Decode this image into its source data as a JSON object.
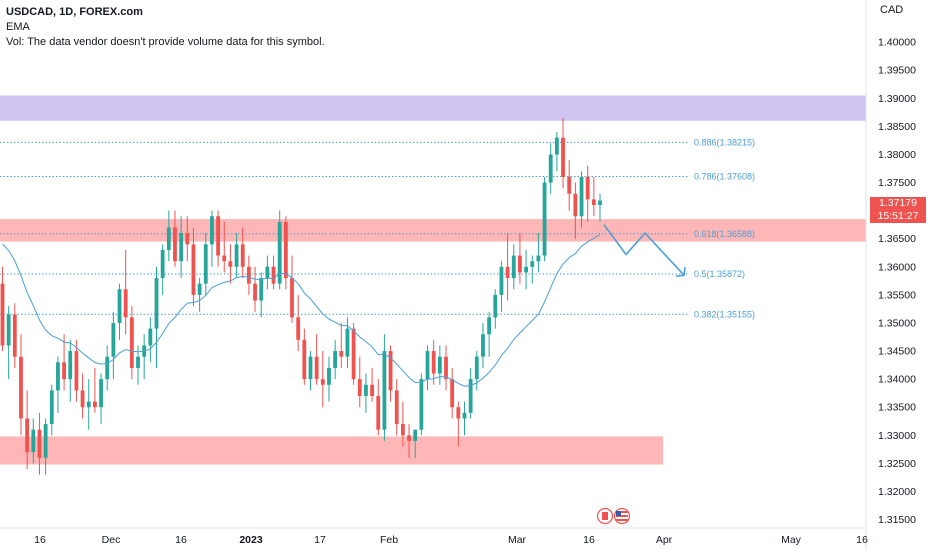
{
  "header": {
    "symbol_line": "USDCAD, 1D, FOREX.com",
    "indicator": "EMA",
    "volume_note": "Vol: The data vendor doesn't provide volume data for this symbol."
  },
  "currency": "CAD",
  "last_price": {
    "value": "1.37179",
    "countdown": "15:51:27"
  },
  "colors": {
    "up": "#26a69a",
    "down": "#ef5350",
    "candle_body_up": "#26a69a",
    "candle_body_down": "#ef5350",
    "wick": "#555555",
    "ema": "#4a9fd6",
    "fib": "#4a9fd6",
    "resistance_zone": "#d1c4f2",
    "support_zone": "#ffb6b6",
    "axis_text": "#131722"
  },
  "chart_data": {
    "type": "candlestick",
    "y_axis": {
      "min": 1.3135,
      "max": 1.4075,
      "ticks": [
        "1.40000",
        "1.39500",
        "1.39000",
        "1.38500",
        "1.38000",
        "1.37500",
        "1.37000",
        "1.36500",
        "1.36000",
        "1.35500",
        "1.35000",
        "1.34500",
        "1.34000",
        "1.33500",
        "1.33000",
        "1.32500",
        "1.32000",
        "1.31500"
      ]
    },
    "x_axis": {
      "labels": [
        "16",
        "Dec",
        "16",
        "2023",
        "17",
        "Feb",
        "Mar",
        "16",
        "Apr",
        "May",
        "16"
      ]
    },
    "zones": [
      {
        "name": "resistance",
        "low": 1.386,
        "high": 1.3905
      },
      {
        "name": "middle",
        "low": 1.3645,
        "high": 1.3685
      },
      {
        "name": "support",
        "low": 1.3248,
        "high": 1.3298
      }
    ],
    "fib_levels": [
      {
        "label": "0.886(1.38215)",
        "value": 1.38215
      },
      {
        "label": "0.786(1.37608)",
        "value": 1.37608
      },
      {
        "label": "0.618(1.36588)",
        "value": 1.36588
      },
      {
        "label": "0.5(1.35872)",
        "value": 1.35872
      },
      {
        "label": "0.382(1.35155)",
        "value": 1.35155
      }
    ],
    "projection_path": [
      1.3675,
      1.3622,
      1.366,
      1.3585
    ],
    "candles": [
      {
        "o": 1.357,
        "h": 1.36,
        "l": 1.345,
        "c": 1.346
      },
      {
        "o": 1.346,
        "h": 1.353,
        "l": 1.34,
        "c": 1.3515
      },
      {
        "o": 1.3515,
        "h": 1.3535,
        "l": 1.342,
        "c": 1.344
      },
      {
        "o": 1.344,
        "h": 1.348,
        "l": 1.33,
        "c": 1.333
      },
      {
        "o": 1.333,
        "h": 1.338,
        "l": 1.324,
        "c": 1.327
      },
      {
        "o": 1.327,
        "h": 1.333,
        "l": 1.325,
        "c": 1.331
      },
      {
        "o": 1.331,
        "h": 1.334,
        "l": 1.323,
        "c": 1.326
      },
      {
        "o": 1.326,
        "h": 1.333,
        "l": 1.323,
        "c": 1.332
      },
      {
        "o": 1.332,
        "h": 1.339,
        "l": 1.33,
        "c": 1.338
      },
      {
        "o": 1.338,
        "h": 1.344,
        "l": 1.334,
        "c": 1.343
      },
      {
        "o": 1.343,
        "h": 1.348,
        "l": 1.338,
        "c": 1.34
      },
      {
        "o": 1.34,
        "h": 1.347,
        "l": 1.336,
        "c": 1.345
      },
      {
        "o": 1.345,
        "h": 1.347,
        "l": 1.336,
        "c": 1.338
      },
      {
        "o": 1.338,
        "h": 1.341,
        "l": 1.333,
        "c": 1.335
      },
      {
        "o": 1.335,
        "h": 1.34,
        "l": 1.331,
        "c": 1.336
      },
      {
        "o": 1.336,
        "h": 1.342,
        "l": 1.334,
        "c": 1.335
      },
      {
        "o": 1.335,
        "h": 1.341,
        "l": 1.332,
        "c": 1.34
      },
      {
        "o": 1.34,
        "h": 1.346,
        "l": 1.338,
        "c": 1.344
      },
      {
        "o": 1.344,
        "h": 1.352,
        "l": 1.34,
        "c": 1.35
      },
      {
        "o": 1.35,
        "h": 1.357,
        "l": 1.347,
        "c": 1.356
      },
      {
        "o": 1.356,
        "h": 1.363,
        "l": 1.348,
        "c": 1.351
      },
      {
        "o": 1.351,
        "h": 1.353,
        "l": 1.34,
        "c": 1.342
      },
      {
        "o": 1.342,
        "h": 1.346,
        "l": 1.339,
        "c": 1.344
      },
      {
        "o": 1.344,
        "h": 1.348,
        "l": 1.34,
        "c": 1.346
      },
      {
        "o": 1.346,
        "h": 1.351,
        "l": 1.343,
        "c": 1.349
      },
      {
        "o": 1.349,
        "h": 1.36,
        "l": 1.342,
        "c": 1.358
      },
      {
        "o": 1.358,
        "h": 1.364,
        "l": 1.355,
        "c": 1.363
      },
      {
        "o": 1.363,
        "h": 1.37,
        "l": 1.361,
        "c": 1.367
      },
      {
        "o": 1.367,
        "h": 1.37,
        "l": 1.36,
        "c": 1.361
      },
      {
        "o": 1.361,
        "h": 1.369,
        "l": 1.358,
        "c": 1.366
      },
      {
        "o": 1.366,
        "h": 1.369,
        "l": 1.361,
        "c": 1.364
      },
      {
        "o": 1.364,
        "h": 1.367,
        "l": 1.353,
        "c": 1.355
      },
      {
        "o": 1.355,
        "h": 1.358,
        "l": 1.352,
        "c": 1.357
      },
      {
        "o": 1.357,
        "h": 1.366,
        "l": 1.355,
        "c": 1.364
      },
      {
        "o": 1.364,
        "h": 1.37,
        "l": 1.36,
        "c": 1.369
      },
      {
        "o": 1.369,
        "h": 1.37,
        "l": 1.36,
        "c": 1.362
      },
      {
        "o": 1.362,
        "h": 1.368,
        "l": 1.359,
        "c": 1.361
      },
      {
        "o": 1.361,
        "h": 1.364,
        "l": 1.357,
        "c": 1.36
      },
      {
        "o": 1.36,
        "h": 1.366,
        "l": 1.358,
        "c": 1.364
      },
      {
        "o": 1.364,
        "h": 1.367,
        "l": 1.358,
        "c": 1.36
      },
      {
        "o": 1.36,
        "h": 1.362,
        "l": 1.355,
        "c": 1.357
      },
      {
        "o": 1.357,
        "h": 1.36,
        "l": 1.352,
        "c": 1.354
      },
      {
        "o": 1.354,
        "h": 1.359,
        "l": 1.351,
        "c": 1.358
      },
      {
        "o": 1.358,
        "h": 1.362,
        "l": 1.356,
        "c": 1.36
      },
      {
        "o": 1.36,
        "h": 1.362,
        "l": 1.356,
        "c": 1.357
      },
      {
        "o": 1.357,
        "h": 1.37,
        "l": 1.356,
        "c": 1.368
      },
      {
        "o": 1.368,
        "h": 1.369,
        "l": 1.356,
        "c": 1.358
      },
      {
        "o": 1.358,
        "h": 1.362,
        "l": 1.35,
        "c": 1.351
      },
      {
        "o": 1.351,
        "h": 1.355,
        "l": 1.345,
        "c": 1.347
      },
      {
        "o": 1.347,
        "h": 1.349,
        "l": 1.339,
        "c": 1.34
      },
      {
        "o": 1.34,
        "h": 1.345,
        "l": 1.338,
        "c": 1.344
      },
      {
        "o": 1.344,
        "h": 1.348,
        "l": 1.339,
        "c": 1.34
      },
      {
        "o": 1.34,
        "h": 1.345,
        "l": 1.335,
        "c": 1.339
      },
      {
        "o": 1.339,
        "h": 1.344,
        "l": 1.336,
        "c": 1.342
      },
      {
        "o": 1.342,
        "h": 1.347,
        "l": 1.34,
        "c": 1.345
      },
      {
        "o": 1.345,
        "h": 1.35,
        "l": 1.342,
        "c": 1.344
      },
      {
        "o": 1.344,
        "h": 1.351,
        "l": 1.342,
        "c": 1.349
      },
      {
        "o": 1.349,
        "h": 1.35,
        "l": 1.339,
        "c": 1.34
      },
      {
        "o": 1.34,
        "h": 1.344,
        "l": 1.335,
        "c": 1.337
      },
      {
        "o": 1.337,
        "h": 1.341,
        "l": 1.334,
        "c": 1.339
      },
      {
        "o": 1.339,
        "h": 1.342,
        "l": 1.336,
        "c": 1.337
      },
      {
        "o": 1.337,
        "h": 1.34,
        "l": 1.33,
        "c": 1.331
      },
      {
        "o": 1.331,
        "h": 1.348,
        "l": 1.329,
        "c": 1.345
      },
      {
        "o": 1.345,
        "h": 1.346,
        "l": 1.336,
        "c": 1.338
      },
      {
        "o": 1.338,
        "h": 1.34,
        "l": 1.33,
        "c": 1.332
      },
      {
        "o": 1.332,
        "h": 1.336,
        "l": 1.328,
        "c": 1.33
      },
      {
        "o": 1.33,
        "h": 1.332,
        "l": 1.326,
        "c": 1.329
      },
      {
        "o": 1.329,
        "h": 1.331,
        "l": 1.326,
        "c": 1.331
      },
      {
        "o": 1.331,
        "h": 1.341,
        "l": 1.33,
        "c": 1.34
      },
      {
        "o": 1.34,
        "h": 1.346,
        "l": 1.338,
        "c": 1.345
      },
      {
        "o": 1.345,
        "h": 1.347,
        "l": 1.339,
        "c": 1.341
      },
      {
        "o": 1.341,
        "h": 1.346,
        "l": 1.339,
        "c": 1.344
      },
      {
        "o": 1.344,
        "h": 1.346,
        "l": 1.338,
        "c": 1.34
      },
      {
        "o": 1.34,
        "h": 1.342,
        "l": 1.333,
        "c": 1.335
      },
      {
        "o": 1.335,
        "h": 1.336,
        "l": 1.328,
        "c": 1.333
      },
      {
        "o": 1.333,
        "h": 1.336,
        "l": 1.33,
        "c": 1.334
      },
      {
        "o": 1.334,
        "h": 1.342,
        "l": 1.333,
        "c": 1.34
      },
      {
        "o": 1.34,
        "h": 1.345,
        "l": 1.338,
        "c": 1.344
      },
      {
        "o": 1.344,
        "h": 1.35,
        "l": 1.342,
        "c": 1.348
      },
      {
        "o": 1.348,
        "h": 1.352,
        "l": 1.344,
        "c": 1.351
      },
      {
        "o": 1.351,
        "h": 1.356,
        "l": 1.349,
        "c": 1.355
      },
      {
        "o": 1.355,
        "h": 1.361,
        "l": 1.352,
        "c": 1.36
      },
      {
        "o": 1.36,
        "h": 1.366,
        "l": 1.354,
        "c": 1.358
      },
      {
        "o": 1.358,
        "h": 1.364,
        "l": 1.356,
        "c": 1.362
      },
      {
        "o": 1.362,
        "h": 1.366,
        "l": 1.357,
        "c": 1.359
      },
      {
        "o": 1.359,
        "h": 1.363,
        "l": 1.356,
        "c": 1.36
      },
      {
        "o": 1.36,
        "h": 1.362,
        "l": 1.357,
        "c": 1.361
      },
      {
        "o": 1.361,
        "h": 1.366,
        "l": 1.359,
        "c": 1.362
      },
      {
        "o": 1.362,
        "h": 1.376,
        "l": 1.361,
        "c": 1.375
      },
      {
        "o": 1.375,
        "h": 1.382,
        "l": 1.373,
        "c": 1.38
      },
      {
        "o": 1.38,
        "h": 1.384,
        "l": 1.377,
        "c": 1.383
      },
      {
        "o": 1.383,
        "h": 1.3865,
        "l": 1.374,
        "c": 1.376
      },
      {
        "o": 1.376,
        "h": 1.379,
        "l": 1.37,
        "c": 1.373
      },
      {
        "o": 1.373,
        "h": 1.375,
        "l": 1.365,
        "c": 1.369
      },
      {
        "o": 1.369,
        "h": 1.377,
        "l": 1.367,
        "c": 1.376
      },
      {
        "o": 1.376,
        "h": 1.378,
        "l": 1.368,
        "c": 1.372
      },
      {
        "o": 1.372,
        "h": 1.376,
        "l": 1.369,
        "c": 1.371
      },
      {
        "o": 1.371,
        "h": 1.373,
        "l": 1.368,
        "c": 1.3718
      }
    ]
  }
}
